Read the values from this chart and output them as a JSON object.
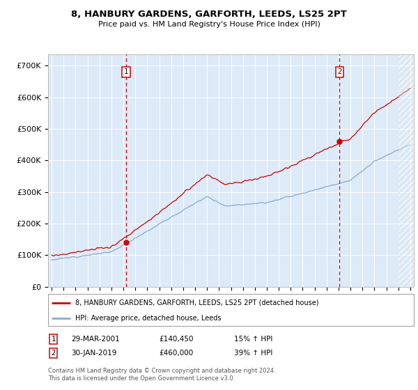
{
  "title": "8, HANBURY GARDENS, GARFORTH, LEEDS, LS25 2PT",
  "subtitle": "Price paid vs. HM Land Registry's House Price Index (HPI)",
  "ylabel_ticks": [
    0,
    100000,
    200000,
    300000,
    400000,
    500000,
    600000,
    700000
  ],
  "ylabel_labels": [
    "£0",
    "£100K",
    "£200K",
    "£300K",
    "£400K",
    "£500K",
    "£600K",
    "£700K"
  ],
  "ylim": [
    0,
    735000
  ],
  "xlim_start": 1994.7,
  "xlim_end": 2025.3,
  "sale1_year": 2001.24,
  "sale1_price": 140450,
  "sale2_year": 2019.08,
  "sale2_price": 460000,
  "legend_line1": "8, HANBURY GARDENS, GARFORTH, LEEDS, LS25 2PT (detached house)",
  "legend_line2": "HPI: Average price, detached house, Leeds",
  "note1_label": "1",
  "note1_date": "29-MAR-2001",
  "note1_price": "£140,450",
  "note1_pct": "15% ↑ HPI",
  "note2_label": "2",
  "note2_date": "30-JAN-2019",
  "note2_price": "£460,000",
  "note2_pct": "39% ↑ HPI",
  "footer": "Contains HM Land Registry data © Crown copyright and database right 2024.\nThis data is licensed under the Open Government Licence v3.0.",
  "plot_bg_color": "#ddeaf7",
  "line_red": "#cc0000",
  "line_blue": "#88aacc",
  "grid_color": "#ffffff",
  "hatch_start": 2024.0
}
